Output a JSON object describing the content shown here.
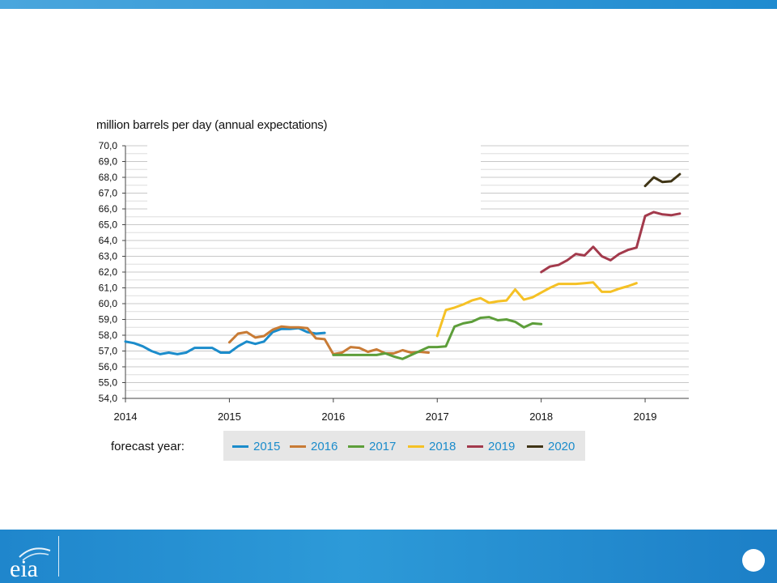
{
  "ylabel": "million barrels per day (annual expectations)",
  "legend_title": "forecast year:",
  "chart_data": {
    "type": "line",
    "ylabel": "million barrels per day (annual expectations)",
    "xlabel": "",
    "x_ticks": [
      "2014",
      "2015",
      "2016",
      "2017",
      "2018",
      "2019"
    ],
    "y_ticks": [
      "70,0",
      "69,0",
      "68,0",
      "67,0",
      "66,0",
      "65,0",
      "64,0",
      "63,0",
      "62,0",
      "61,0",
      "60,0",
      "59,0",
      "58,0",
      "57,0",
      "56,0",
      "55,0",
      "54,0"
    ],
    "ylim": [
      54,
      70
    ],
    "grid": true,
    "legend": "bottom",
    "series": [
      {
        "name": "2015",
        "color": "#1b8ccb",
        "start": 2014.0,
        "values": [
          57.6,
          57.5,
          57.3,
          57.0,
          56.8,
          56.9,
          56.8,
          56.9,
          57.2,
          57.2,
          57.2,
          56.9,
          56.9,
          57.3,
          57.6,
          57.45,
          57.6,
          58.2,
          58.4,
          58.4,
          58.45,
          58.2,
          58.1,
          58.15
        ]
      },
      {
        "name": "2016",
        "color": "#c87b35",
        "start": 2015.0,
        "values": [
          57.55,
          58.1,
          58.2,
          57.85,
          57.95,
          58.35,
          58.55,
          58.5,
          58.5,
          58.45,
          57.8,
          57.75,
          56.8,
          56.9,
          57.25,
          57.2,
          56.95,
          57.1,
          56.85,
          56.85,
          57.05,
          56.9,
          56.95,
          56.9
        ]
      },
      {
        "name": "2017",
        "color": "#5d9e3a",
        "start": 2016.0,
        "values": [
          56.75,
          56.75,
          56.75,
          56.75,
          56.75,
          56.75,
          56.85,
          56.65,
          56.5,
          56.75,
          57.0,
          57.25,
          57.25,
          57.3,
          58.55,
          58.75,
          58.85,
          59.1,
          59.15,
          58.95,
          59.0,
          58.85,
          58.5,
          58.75,
          58.7
        ]
      },
      {
        "name": "2018",
        "color": "#f5c125",
        "start": 2017.0,
        "values": [
          57.95,
          59.6,
          59.75,
          59.95,
          60.2,
          60.35,
          60.05,
          60.15,
          60.2,
          60.9,
          60.25,
          60.4,
          60.7,
          61.0,
          61.25,
          61.25,
          61.25,
          61.3,
          61.35,
          60.75,
          60.75,
          60.95,
          61.1,
          61.3
        ]
      },
      {
        "name": "2019",
        "color": "#a33a4c",
        "start": 2018.0,
        "values": [
          62.0,
          62.35,
          62.45,
          62.75,
          63.15,
          63.05,
          63.6,
          63.0,
          62.75,
          63.15,
          63.4,
          63.55,
          65.55,
          65.8,
          65.65,
          65.6,
          65.7
        ]
      },
      {
        "name": "2020",
        "color": "#3f3415",
        "start": 2019.0,
        "values": [
          67.45,
          68.0,
          67.7,
          67.75,
          68.2
        ]
      }
    ]
  }
}
